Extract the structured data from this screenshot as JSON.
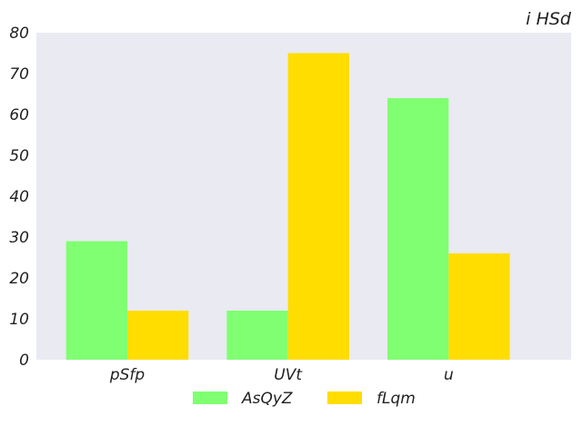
{
  "chart_data": {
    "type": "bar",
    "title": "i HSd",
    "xlabel": "",
    "ylabel": "",
    "categories": [
      "pSfp",
      "UVt",
      "u"
    ],
    "series": [
      {
        "name": "AsQyZ",
        "values": [
          29,
          12,
          64
        ],
        "color": "#80ff72"
      },
      {
        "name": "fLqm",
        "values": [
          12,
          75,
          26
        ],
        "color": "#ffdd00"
      }
    ],
    "ylim": [
      0,
      80
    ],
    "yticks": [
      0,
      10,
      20,
      30,
      40,
      50,
      60,
      70,
      80
    ],
    "grid": false,
    "plot_background": "#eaeaf2",
    "legend": {
      "placement": "bottom-center"
    }
  }
}
